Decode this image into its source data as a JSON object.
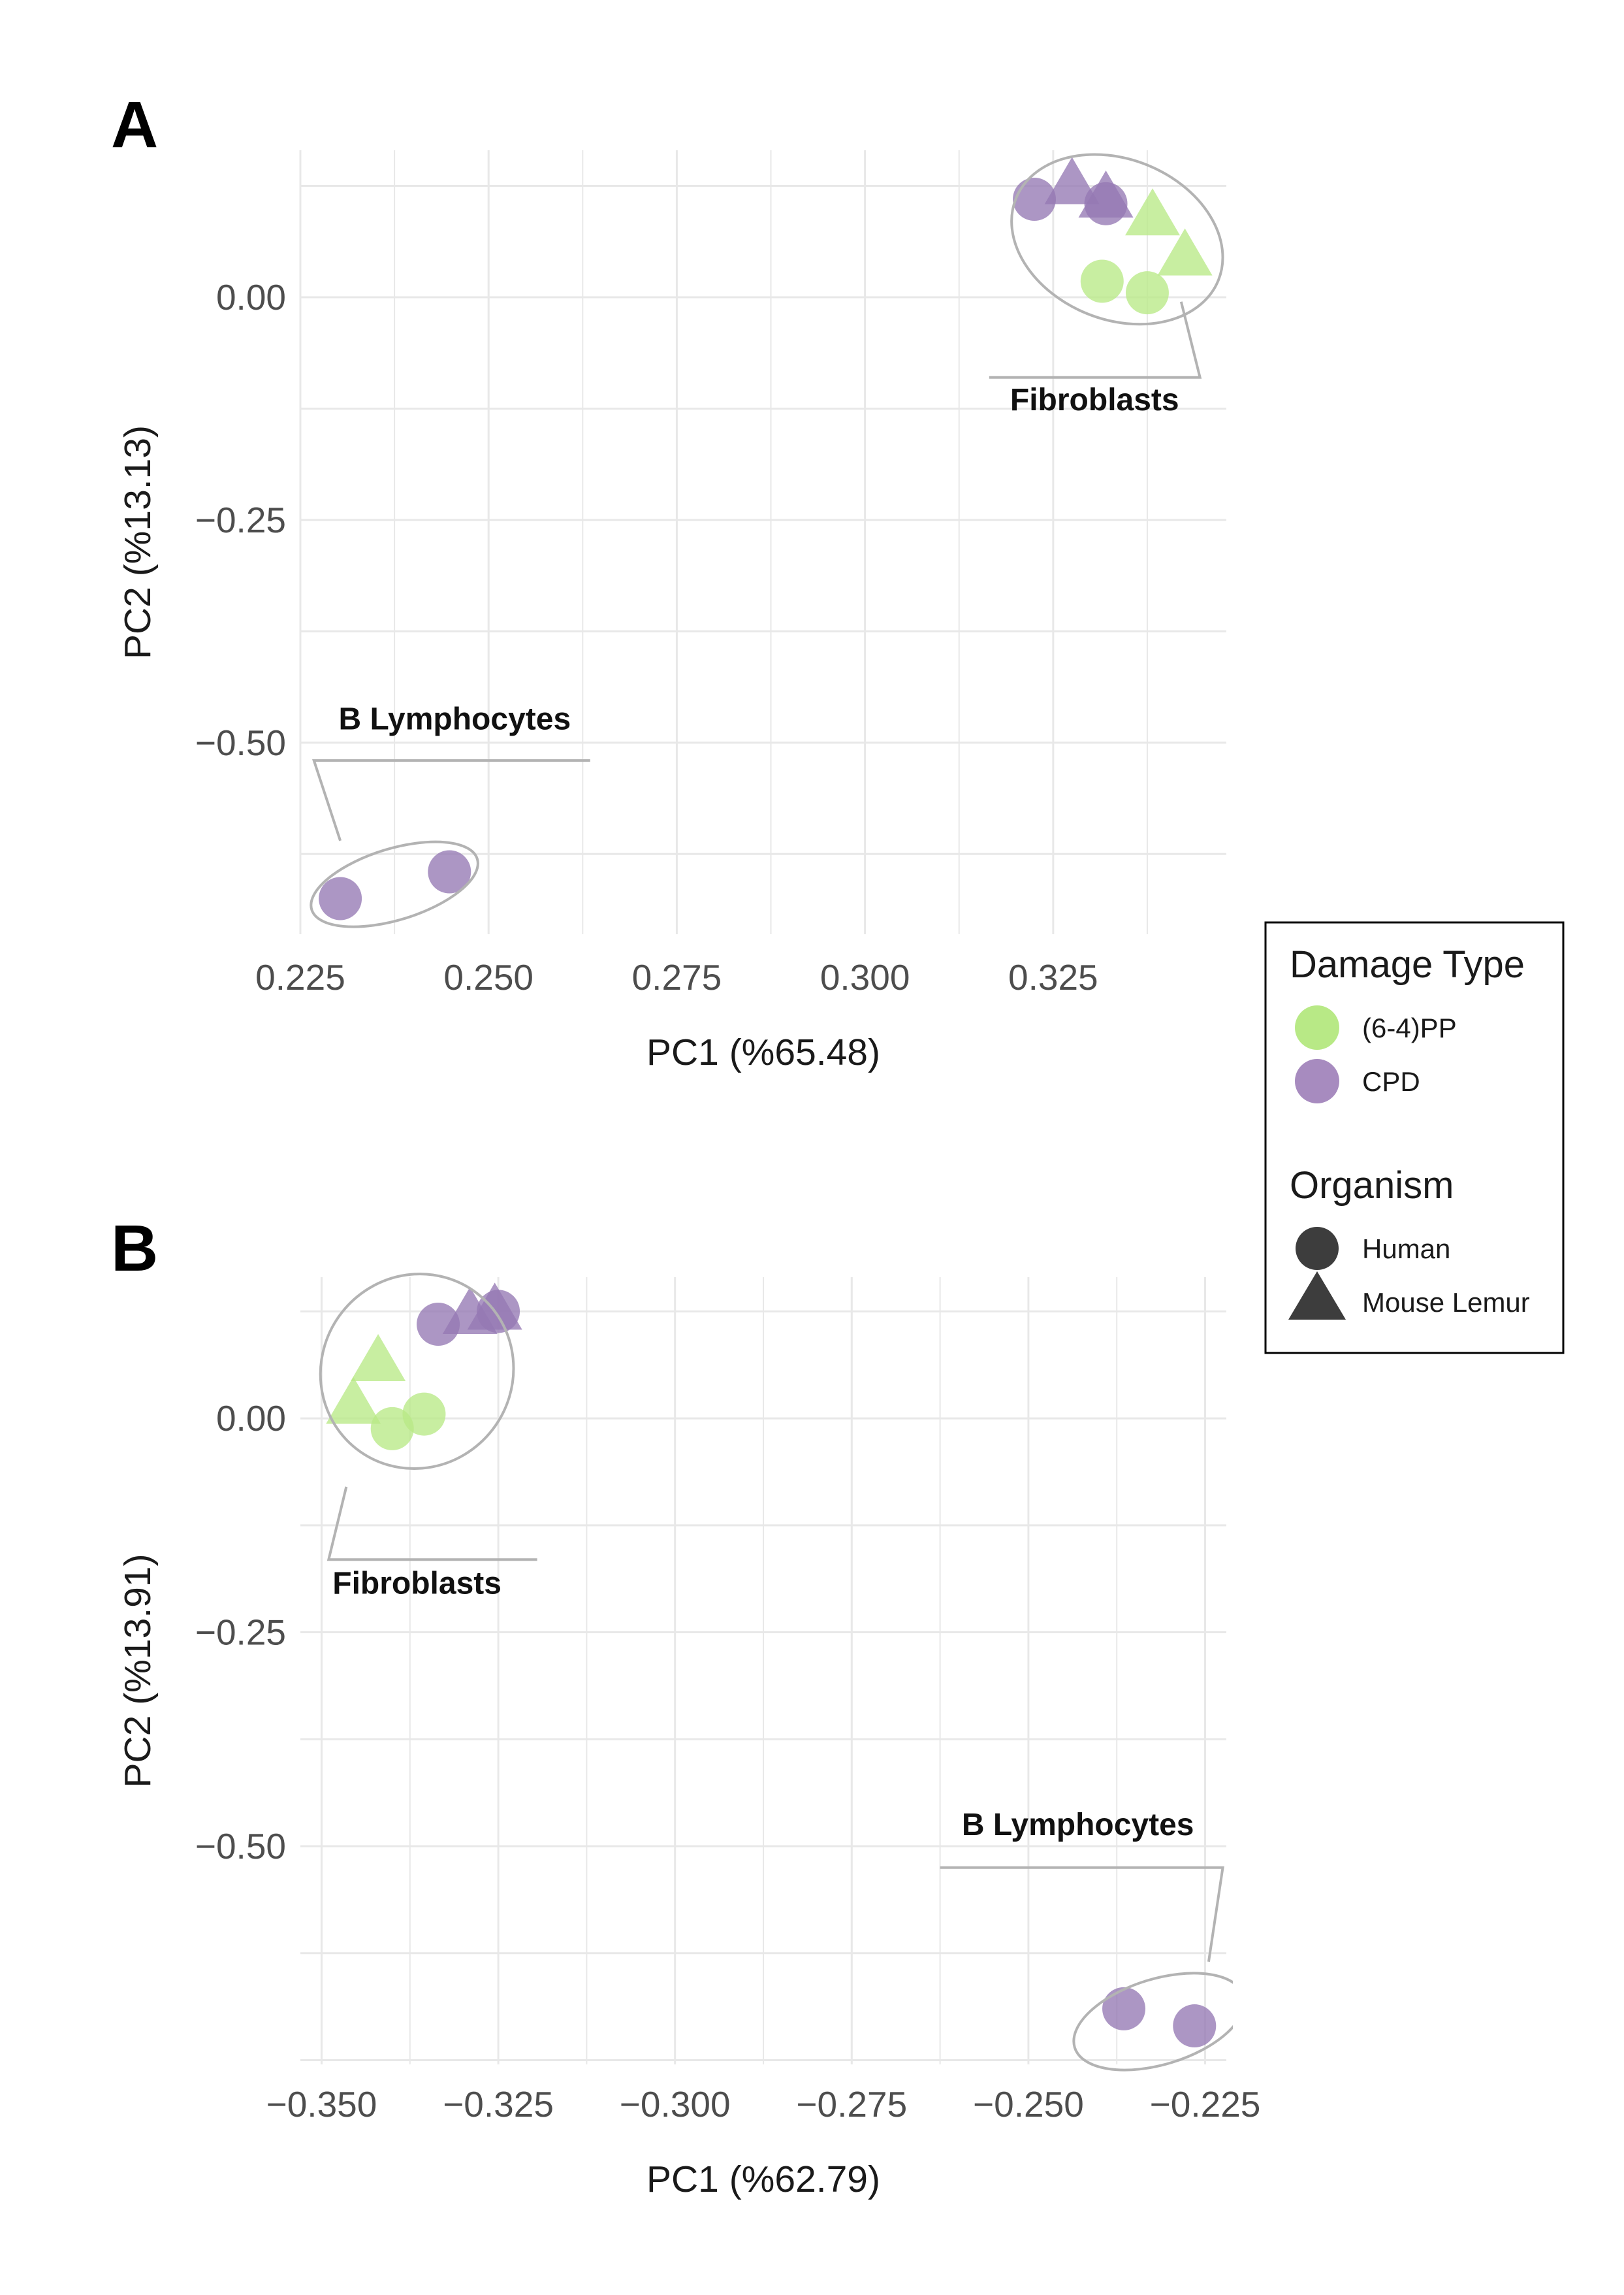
{
  "chart_data": [
    {
      "type": "scatter",
      "panel_label": "A",
      "xlabel": "PC1 (%65.48)",
      "ylabel": "PC2 (%13.13)",
      "xlim": [
        0.225,
        0.348
      ],
      "ylim": [
        -0.715,
        0.165
      ],
      "x_ticks": [
        0.225,
        0.25,
        0.275,
        0.3,
        0.325
      ],
      "x_tick_labels": [
        "0.225",
        "0.250",
        "0.275",
        "0.300",
        "0.325"
      ],
      "y_ticks": [
        0.0,
        -0.25,
        -0.5
      ],
      "y_tick_labels": [
        "0.00",
        "−0.25",
        "−0.50"
      ],
      "grid": true,
      "legend": "shared-right",
      "points": [
        {
          "x": 0.3225,
          "y": 0.11,
          "damage": "CPD",
          "organism": "Human"
        },
        {
          "x": 0.332,
          "y": 0.105,
          "damage": "CPD",
          "organism": "Human"
        },
        {
          "x": 0.3275,
          "y": 0.125,
          "damage": "CPD",
          "organism": "Mouse Lemur"
        },
        {
          "x": 0.332,
          "y": 0.11,
          "damage": "CPD",
          "organism": "Mouse Lemur"
        },
        {
          "x": 0.3382,
          "y": 0.09,
          "damage": "(6-4)PP",
          "organism": "Mouse Lemur"
        },
        {
          "x": 0.3425,
          "y": 0.045,
          "damage": "(6-4)PP",
          "organism": "Mouse Lemur"
        },
        {
          "x": 0.3315,
          "y": 0.018,
          "damage": "(6-4)PP",
          "organism": "Human"
        },
        {
          "x": 0.3375,
          "y": 0.005,
          "damage": "(6-4)PP",
          "organism": "Human"
        },
        {
          "x": 0.2303,
          "y": -0.675,
          "damage": "CPD",
          "organism": "Human"
        },
        {
          "x": 0.2448,
          "y": -0.645,
          "damage": "CPD",
          "organism": "Human"
        }
      ],
      "clusters": [
        {
          "label": "Fibroblasts",
          "ellipse": {
            "cx": 0.3335,
            "cy": 0.065,
            "rx": 0.0145,
            "ry": 0.09,
            "angle_deg": 22
          },
          "leader": [
            [
              0.342,
              -0.005
            ],
            [
              0.3445,
              -0.09
            ],
            [
              0.3165,
              -0.09
            ]
          ],
          "label_pos": [
            0.3305,
            -0.127
          ]
        },
        {
          "label": "B Lymphocytes",
          "ellipse": {
            "cx": 0.2375,
            "cy": -0.659,
            "rx": 0.0115,
            "ry": 0.04,
            "angle_deg": -17
          },
          "leader": [
            [
              0.2303,
              -0.61
            ],
            [
              0.2268,
              -0.52
            ],
            [
              0.2635,
              -0.52
            ]
          ],
          "label_pos": [
            0.2455,
            -0.485
          ]
        }
      ]
    },
    {
      "type": "scatter",
      "panel_label": "B",
      "xlabel": "PC1 (%62.79)",
      "ylabel": "PC2 (%13.91)",
      "xlim": [
        -0.353,
        -0.222
      ],
      "ylim": [
        -0.755,
        0.165
      ],
      "x_ticks": [
        -0.35,
        -0.325,
        -0.3,
        -0.275,
        -0.25,
        -0.225
      ],
      "x_tick_labels": [
        "−0.350",
        "−0.325",
        "−0.300",
        "−0.275",
        "−0.250",
        "−0.225"
      ],
      "y_ticks": [
        0.0,
        -0.25,
        -0.5
      ],
      "y_tick_labels": [
        "0.00",
        "−0.25",
        "−0.50"
      ],
      "grid": true,
      "legend": "shared-right",
      "points": [
        {
          "x": -0.3335,
          "y": 0.11,
          "damage": "CPD",
          "organism": "Human"
        },
        {
          "x": -0.325,
          "y": 0.125,
          "damage": "CPD",
          "organism": "Human"
        },
        {
          "x": -0.329,
          "y": 0.12,
          "damage": "CPD",
          "organism": "Mouse Lemur"
        },
        {
          "x": -0.3255,
          "y": 0.125,
          "damage": "CPD",
          "organism": "Mouse Lemur"
        },
        {
          "x": -0.342,
          "y": 0.065,
          "damage": "(6-4)PP",
          "organism": "Mouse Lemur"
        },
        {
          "x": -0.3455,
          "y": 0.015,
          "damage": "(6-4)PP",
          "organism": "Mouse Lemur"
        },
        {
          "x": -0.3355,
          "y": 0.005,
          "damage": "(6-4)PP",
          "organism": "Human"
        },
        {
          "x": -0.34,
          "y": -0.012,
          "damage": "(6-4)PP",
          "organism": "Human"
        },
        {
          "x": -0.2365,
          "y": -0.69,
          "damage": "CPD",
          "organism": "Human"
        },
        {
          "x": -0.2265,
          "y": -0.71,
          "damage": "CPD",
          "organism": "Human"
        }
      ],
      "clusters": [
        {
          "label": "Fibroblasts",
          "ellipse": {
            "cx": -0.3365,
            "cy": 0.055,
            "rx": 0.0135,
            "ry": 0.115,
            "angle_deg": 38
          },
          "leader": [
            [
              -0.3465,
              -0.08
            ],
            [
              -0.349,
              -0.165
            ],
            [
              -0.3195,
              -0.165
            ]
          ],
          "label_pos": [
            -0.3365,
            -0.205
          ]
        },
        {
          "label": "B Lymphocytes",
          "ellipse": {
            "cx": -0.2315,
            "cy": -0.705,
            "rx": 0.0125,
            "ry": 0.05,
            "angle_deg": -17
          },
          "leader": [
            [
              -0.2245,
              -0.635
            ],
            [
              -0.2225,
              -0.525
            ],
            [
              -0.2625,
              -0.525
            ]
          ],
          "label_pos": [
            -0.243,
            -0.487
          ]
        }
      ]
    }
  ],
  "legend": {
    "damage_title": "Damage Type",
    "damage_items": [
      {
        "label": "(6-4)PP",
        "color": "#b8e986"
      },
      {
        "label": "CPD",
        "color": "#a78bbf"
      }
    ],
    "organism_title": "Organism",
    "organism_items": [
      {
        "label": "Human",
        "shape": "circle"
      },
      {
        "label": "Mouse Lemur",
        "shape": "triangle"
      }
    ]
  },
  "colors": {
    "cpd": "#9579b3",
    "pp64": "#b8e986",
    "legend_shape": "#3d3d3d",
    "grid": "#e8e8e8",
    "ellipse": "#b3b3b3"
  }
}
